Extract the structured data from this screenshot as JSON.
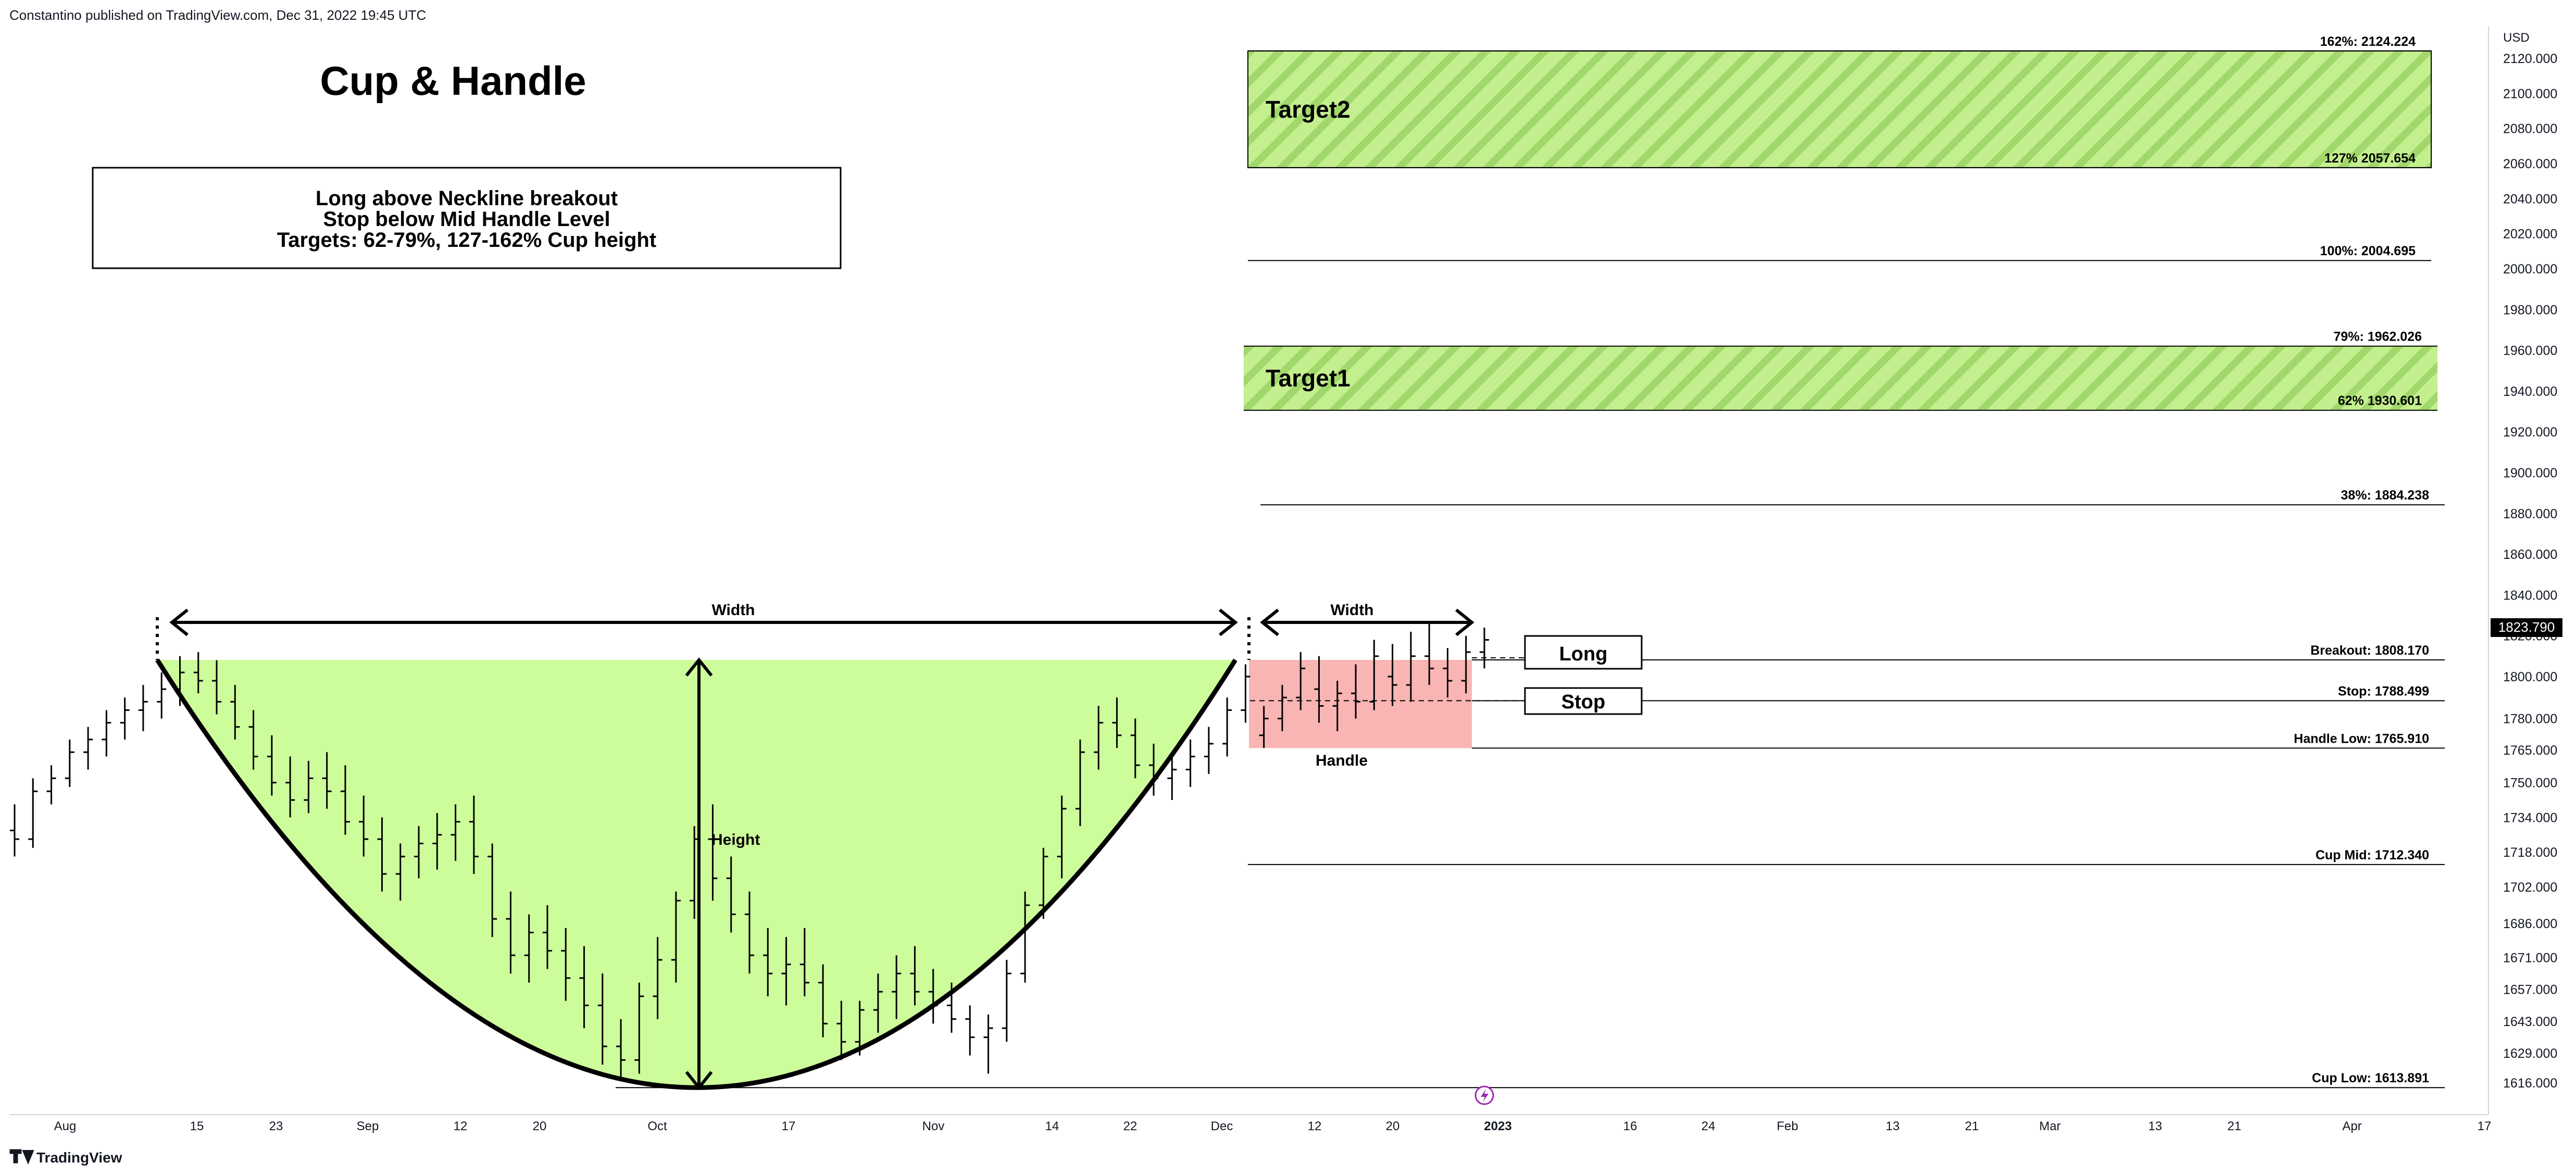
{
  "header": {
    "attribution": "Constantino published on TradingView.com, Dec 31, 2022 19:45 UTC"
  },
  "footer": {
    "brand": "TradingView"
  },
  "colors": {
    "cup_fill": "#cdfc9b",
    "handle_fill": "#f9b4b4",
    "target_fill": "#c4ef8f",
    "target_stripe": "#a2d86b",
    "line": "#000000",
    "axis_text": "#131722",
    "price_badge_bg": "#000000",
    "price_badge_fg": "#ffffff",
    "marker": "#9c27b0"
  },
  "chart_data": {
    "type": "ohlc",
    "title": "Cup & Handle",
    "currency": "USD",
    "info_box": [
      "Long above Neckline breakout",
      "Stop below Mid Handle Level",
      "Targets: 62-79%, 127-162% Cup height"
    ],
    "last_price": "1823.790",
    "y_ticks": [
      "2120.000",
      "2100.000",
      "2080.000",
      "2060.000",
      "2040.000",
      "2020.000",
      "2000.000",
      "1980.000",
      "1960.000",
      "1940.000",
      "1920.000",
      "1900.000",
      "1880.000",
      "1860.000",
      "1840.000",
      "1820.000",
      "1800.000",
      "1780.000",
      "1765.000",
      "1750.000",
      "1734.000",
      "1718.000",
      "1702.000",
      "1686.000",
      "1671.000",
      "1657.000",
      "1643.000",
      "1629.000",
      "1616.000"
    ],
    "x_ticks": [
      "Aug",
      "15",
      "23",
      "Sep",
      "12",
      "20",
      "Oct",
      "17",
      "Nov",
      "14",
      "22",
      "Dec",
      "12",
      "20",
      "2023",
      "16",
      "24",
      "Feb",
      "13",
      "21",
      "Mar",
      "13",
      "21",
      "Apr",
      "17"
    ],
    "levels": [
      {
        "label": "162%: 2124.224",
        "value": 2124.224
      },
      {
        "label": "127% 2057.654",
        "value": 2057.654
      },
      {
        "label": "100%: 2004.695",
        "value": 2004.695
      },
      {
        "label": "79%: 1962.026",
        "value": 1962.026
      },
      {
        "label": "62% 1930.601",
        "value": 1930.601
      },
      {
        "label": "38%: 1884.238",
        "value": 1884.238
      },
      {
        "label": "Breakout: 1808.170",
        "value": 1808.17
      },
      {
        "label": "Stop: 1788.499",
        "value": 1788.499
      },
      {
        "label": "Handle Low: 1765.910",
        "value": 1765.91
      },
      {
        "label": "Cup Mid: 1712.340",
        "value": 1712.34
      },
      {
        "label": "Cup Low: 1613.891",
        "value": 1613.891
      }
    ],
    "zones": [
      {
        "label": "Target2",
        "top": 2124.224,
        "bottom": 2057.654
      },
      {
        "label": "Target1",
        "top": 1962.026,
        "bottom": 1930.601
      }
    ],
    "annotations": {
      "cup_width": "Width",
      "handle_width": "Width",
      "height": "Height",
      "handle": "Handle",
      "long": "Long",
      "stop": "Stop"
    },
    "ohlc": [
      [
        1728,
        1740,
        1716,
        1724
      ],
      [
        1724,
        1752,
        1720,
        1746
      ],
      [
        1746,
        1758,
        1740,
        1752
      ],
      [
        1752,
        1770,
        1748,
        1764
      ],
      [
        1764,
        1776,
        1756,
        1770
      ],
      [
        1770,
        1784,
        1762,
        1778
      ],
      [
        1778,
        1790,
        1770,
        1784
      ],
      [
        1784,
        1796,
        1774,
        1788
      ],
      [
        1788,
        1802,
        1780,
        1794
      ],
      [
        1794,
        1810,
        1786,
        1802
      ],
      [
        1802,
        1812,
        1792,
        1798
      ],
      [
        1798,
        1808,
        1782,
        1788
      ],
      [
        1788,
        1796,
        1770,
        1776
      ],
      [
        1776,
        1784,
        1756,
        1762
      ],
      [
        1762,
        1772,
        1744,
        1750
      ],
      [
        1750,
        1762,
        1734,
        1742
      ],
      [
        1742,
        1760,
        1736,
        1752
      ],
      [
        1752,
        1764,
        1738,
        1746
      ],
      [
        1746,
        1758,
        1726,
        1732
      ],
      [
        1732,
        1744,
        1716,
        1724
      ],
      [
        1724,
        1734,
        1700,
        1708
      ],
      [
        1708,
        1722,
        1696,
        1716
      ],
      [
        1716,
        1730,
        1706,
        1722
      ],
      [
        1722,
        1736,
        1710,
        1726
      ],
      [
        1726,
        1740,
        1714,
        1732
      ],
      [
        1732,
        1744,
        1708,
        1716
      ],
      [
        1716,
        1722,
        1680,
        1688
      ],
      [
        1688,
        1700,
        1664,
        1672
      ],
      [
        1672,
        1690,
        1660,
        1682
      ],
      [
        1682,
        1694,
        1666,
        1674
      ],
      [
        1674,
        1684,
        1652,
        1662
      ],
      [
        1662,
        1676,
        1640,
        1650
      ],
      [
        1650,
        1664,
        1624,
        1632
      ],
      [
        1632,
        1644,
        1618,
        1626
      ],
      [
        1626,
        1660,
        1620,
        1654
      ],
      [
        1654,
        1680,
        1644,
        1670
      ],
      [
        1670,
        1700,
        1660,
        1696
      ],
      [
        1696,
        1730,
        1688,
        1724
      ],
      [
        1724,
        1740,
        1696,
        1706
      ],
      [
        1706,
        1716,
        1682,
        1690
      ],
      [
        1690,
        1700,
        1664,
        1672
      ],
      [
        1672,
        1684,
        1654,
        1664
      ],
      [
        1664,
        1680,
        1650,
        1668
      ],
      [
        1668,
        1684,
        1654,
        1660
      ],
      [
        1660,
        1668,
        1636,
        1642
      ],
      [
        1642,
        1652,
        1626,
        1634
      ],
      [
        1634,
        1652,
        1628,
        1648
      ],
      [
        1648,
        1664,
        1638,
        1656
      ],
      [
        1656,
        1672,
        1644,
        1664
      ],
      [
        1664,
        1676,
        1650,
        1656
      ],
      [
        1656,
        1666,
        1642,
        1650
      ],
      [
        1650,
        1660,
        1638,
        1644
      ],
      [
        1644,
        1650,
        1628,
        1636
      ],
      [
        1636,
        1646,
        1620,
        1640
      ],
      [
        1640,
        1670,
        1634,
        1664
      ],
      [
        1664,
        1700,
        1660,
        1694
      ],
      [
        1694,
        1720,
        1688,
        1716
      ],
      [
        1716,
        1744,
        1706,
        1738
      ],
      [
        1738,
        1770,
        1730,
        1764
      ],
      [
        1764,
        1786,
        1756,
        1778
      ],
      [
        1778,
        1790,
        1766,
        1772
      ],
      [
        1772,
        1780,
        1752,
        1758
      ],
      [
        1758,
        1768,
        1744,
        1752
      ],
      [
        1752,
        1764,
        1742,
        1756
      ],
      [
        1756,
        1770,
        1748,
        1762
      ],
      [
        1762,
        1776,
        1754,
        1768
      ],
      [
        1768,
        1790,
        1762,
        1784
      ],
      [
        1784,
        1806,
        1778,
        1800
      ],
      [
        1772,
        1786,
        1766,
        1780
      ],
      [
        1780,
        1796,
        1774,
        1790
      ],
      [
        1790,
        1812,
        1784,
        1804
      ],
      [
        1794,
        1810,
        1778,
        1786
      ],
      [
        1786,
        1798,
        1774,
        1792
      ],
      [
        1792,
        1806,
        1780,
        1788
      ],
      [
        1788,
        1818,
        1784,
        1810
      ],
      [
        1800,
        1816,
        1786,
        1796
      ],
      [
        1796,
        1822,
        1788,
        1810
      ],
      [
        1810,
        1826,
        1796,
        1804
      ],
      [
        1804,
        1814,
        1790,
        1798
      ],
      [
        1798,
        1820,
        1792,
        1812
      ],
      [
        1812,
        1824,
        1804,
        1818
      ]
    ]
  }
}
